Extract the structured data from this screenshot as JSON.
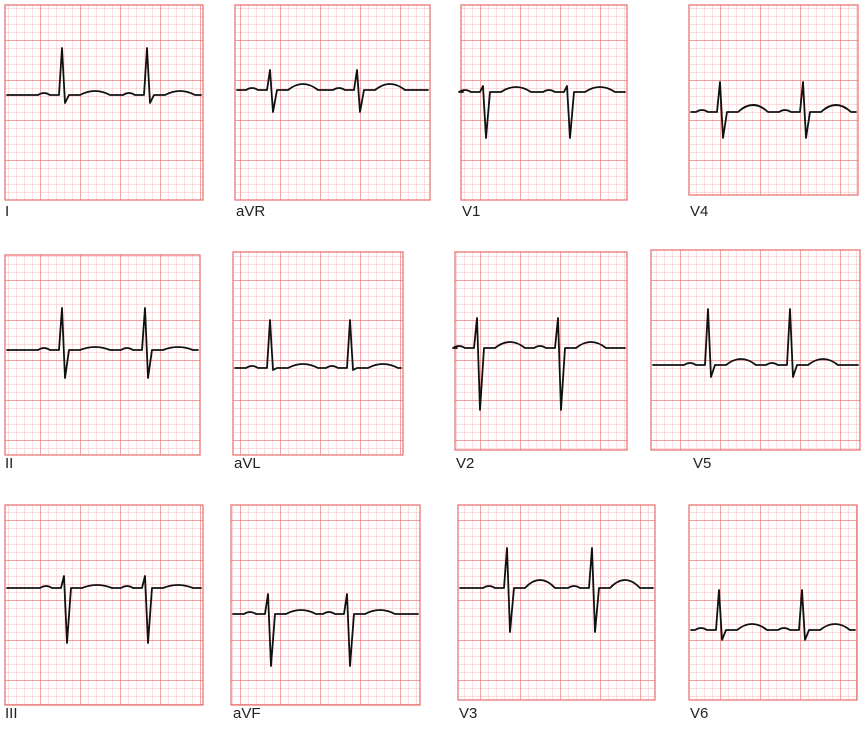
{
  "leads": [
    "I",
    "aVR",
    "V1",
    "V4",
    "II",
    "aVL",
    "V2",
    "V5",
    "III",
    "aVF",
    "V3",
    "V6"
  ]
}
